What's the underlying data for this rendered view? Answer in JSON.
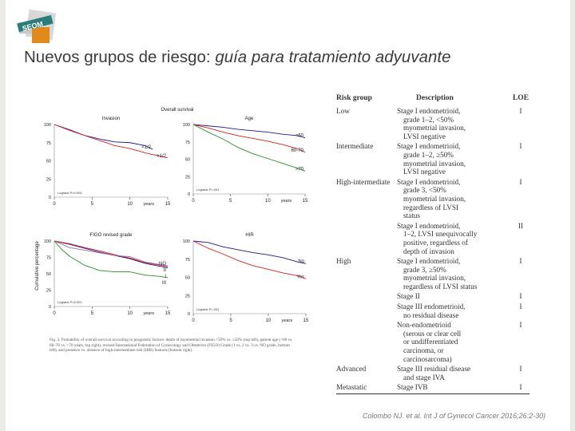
{
  "slide": {
    "title_regular": "Nuevos grupos de riesgo: ",
    "title_italic": "guía para tratamiento adyuvante",
    "logo_text": "SEOM",
    "citation": "Colombo NJ. et al. Int J of Gynecol Cancer 2016;26:2-30)"
  },
  "table": {
    "headers": [
      "Risk group",
      "Description",
      "LOE"
    ],
    "rows": [
      {
        "group": "Low",
        "desc": [
          "Stage I endometrioid,",
          "grade 1–2, <50%",
          "myometrial invasion,",
          "LVSI negative"
        ],
        "loe": "I"
      },
      {
        "group": "Intermediate",
        "desc": [
          "Stage I endometrioid,",
          "grade 1–2, ≥50%",
          "myometrial invasion,",
          "LVSI negative"
        ],
        "loe": "I"
      },
      {
        "group": "High-intermediate",
        "desc": [
          "Stage I endometrioid,",
          "grade 3, <50%",
          "myometrial invasion,",
          "regardless of LVSI",
          "status"
        ],
        "loe": "I"
      },
      {
        "group": "",
        "desc": [
          "Stage I endometrioid,",
          "1–2, LVSI unequivocally",
          "positive, regardless of",
          "depth of invasion"
        ],
        "loe": "II"
      },
      {
        "group": "High",
        "desc": [
          "Stage I endometrioid,",
          "grade 3, ≥50%",
          "myometrial invasion,",
          "regardless of LVSI status"
        ],
        "loe": "I"
      },
      {
        "group": "",
        "desc": [
          "Stage II"
        ],
        "loe": "I"
      },
      {
        "group": "",
        "desc": [
          "Stage III endometrioid,",
          "no residual disease"
        ],
        "loe": "I"
      },
      {
        "group": "",
        "desc": [
          "Non-endometrioid",
          "(serous or clear cell",
          "or undifferentiated",
          "carcinoma, or",
          "carcinosarcoma)"
        ],
        "loe": "I"
      },
      {
        "group": "Advanced",
        "desc": [
          "Stage III residual disease",
          "and stage IVA"
        ],
        "loe": "I"
      },
      {
        "group": "Metastatic",
        "desc": [
          "Stage IVB"
        ],
        "loe": "I"
      }
    ]
  },
  "figure": {
    "suptitle": "Overall survival",
    "ylabel": "Cumulative percentage",
    "caption": "Fig. 3. Probability of overall survival according to prognostic factors: depth of myometrial invasion <50% vs. ≥50% (top left), patient age (<60 vs. 60–70 vs. >70 years, top right), revised International Federation of Gynecology and Obstetrics (FIGO) Grade (1 vs. 2 vs. 3 vs. NO grade, bottom left), and presence vs. absence of high-intermediate-risk (HIR) features (bottom right)."
  },
  "chart_data": [
    {
      "type": "line",
      "title": "Invasion",
      "xlabel": "years",
      "xlim": [
        0,
        15
      ],
      "ylim": [
        0,
        100
      ],
      "yticks": [
        0,
        25,
        50,
        75,
        100
      ],
      "xticks": [
        0,
        5,
        10,
        15
      ],
      "logrank": "Logrank   P=0.004",
      "series": [
        {
          "name": "<1/2",
          "color": "#1a1a8c",
          "x": [
            0,
            2,
            4,
            6,
            8,
            10,
            12,
            13
          ],
          "y": [
            100,
            93,
            85,
            80,
            76,
            75,
            71,
            66
          ]
        },
        {
          "name": ">1/2",
          "color": "#d42020",
          "x": [
            0,
            2,
            4,
            6,
            8,
            10,
            12,
            15
          ],
          "y": [
            100,
            92,
            85,
            78,
            71,
            67,
            61,
            54
          ]
        }
      ]
    },
    {
      "type": "line",
      "title": "Age",
      "xlabel": "years",
      "xlim": [
        0,
        15
      ],
      "ylim": [
        0,
        100
      ],
      "yticks": [
        0,
        25,
        50,
        75,
        100
      ],
      "xticks": [
        0,
        5,
        10,
        15
      ],
      "logrank": "Logrank   P<.001",
      "series": [
        {
          "name": "<60",
          "color": "#1a1a8c",
          "x": [
            0,
            2,
            4,
            6,
            8,
            10,
            12,
            14,
            15
          ],
          "y": [
            100,
            98,
            96,
            93,
            91,
            89,
            86,
            84,
            81
          ]
        },
        {
          "name": "60-70",
          "color": "#d42020",
          "x": [
            0,
            2,
            4,
            6,
            8,
            10,
            12,
            14,
            15
          ],
          "y": [
            100,
            95,
            89,
            84,
            80,
            76,
            71,
            65,
            60
          ]
        },
        {
          "name": ">70",
          "color": "#2a8a2a",
          "x": [
            0,
            2,
            4,
            6,
            8,
            10,
            12,
            14,
            15
          ],
          "y": [
            100,
            89,
            79,
            67,
            58,
            51,
            44,
            37,
            33
          ]
        }
      ]
    },
    {
      "type": "line",
      "title": "FIGO revised grade",
      "xlabel": "years",
      "xlim": [
        0,
        15
      ],
      "ylim": [
        0,
        100
      ],
      "yticks": [
        0,
        25,
        50,
        75,
        100
      ],
      "xticks": [
        0,
        5,
        10,
        15
      ],
      "logrank": "Logrank   P<0.001",
      "series": [
        {
          "name": "I",
          "color": "#1a1a8c",
          "x": [
            0,
            2,
            4,
            6,
            8,
            10,
            12,
            15
          ],
          "y": [
            100,
            95,
            89,
            83,
            78,
            73,
            66,
            59
          ]
        },
        {
          "name": "II",
          "color": "#d42020",
          "x": [
            0,
            2,
            4,
            6,
            8,
            10,
            12,
            15
          ],
          "y": [
            100,
            96,
            90,
            85,
            79,
            74,
            67,
            61
          ]
        },
        {
          "name": "NO",
          "color": "#9a6a9a",
          "x": [
            0,
            2,
            4,
            6,
            8,
            10,
            12,
            15
          ],
          "y": [
            100,
            90,
            86,
            82,
            78,
            76,
            68,
            62
          ]
        },
        {
          "name": "III",
          "color": "#2a8a2a",
          "x": [
            0,
            1,
            2,
            3,
            4,
            6,
            8,
            10,
            12,
            14,
            15
          ],
          "y": [
            100,
            87,
            77,
            70,
            63,
            55,
            53,
            53,
            48,
            46,
            44
          ]
        }
      ]
    },
    {
      "type": "line",
      "title": "HIR",
      "xlabel": "years",
      "xlim": [
        0,
        15
      ],
      "ylim": [
        0,
        100
      ],
      "yticks": [
        0,
        25,
        50,
        75,
        100
      ],
      "xticks": [
        0,
        5,
        10,
        15
      ],
      "logrank": "Logrank   P<.001",
      "series": [
        {
          "name": "No",
          "color": "#1a1a8c",
          "x": [
            0,
            2,
            4,
            6,
            8,
            10,
            12,
            14,
            15
          ],
          "y": [
            100,
            98,
            92,
            88,
            84,
            81,
            77,
            71,
            69
          ]
        },
        {
          "name": "Yes",
          "color": "#d42020",
          "x": [
            0,
            2,
            4,
            6,
            8,
            10,
            12,
            14,
            15
          ],
          "y": [
            100,
            90,
            82,
            73,
            66,
            61,
            56,
            52,
            48
          ]
        }
      ]
    }
  ]
}
